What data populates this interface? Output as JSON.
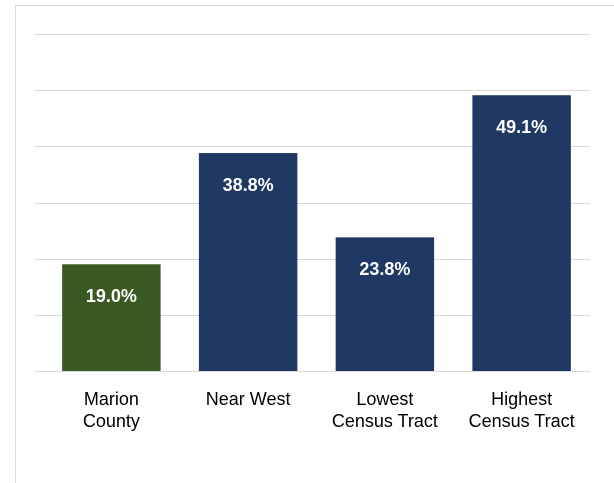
{
  "chart_data": {
    "type": "bar",
    "categories": [
      "Marion County",
      "Near West",
      "Lowest Census Tract",
      "Highest Census Tract"
    ],
    "values": [
      19.0,
      38.8,
      23.8,
      49.1
    ],
    "value_labels": [
      "19.0%",
      "38.8%",
      "23.8%",
      "49.1%"
    ],
    "colors": [
      "#3b5a23",
      "#1f3864",
      "#1f3864",
      "#1f3864"
    ],
    "ylim": [
      0,
      60
    ],
    "yticks": [
      0,
      10,
      20,
      30,
      40,
      50,
      60
    ],
    "grid": true
  }
}
